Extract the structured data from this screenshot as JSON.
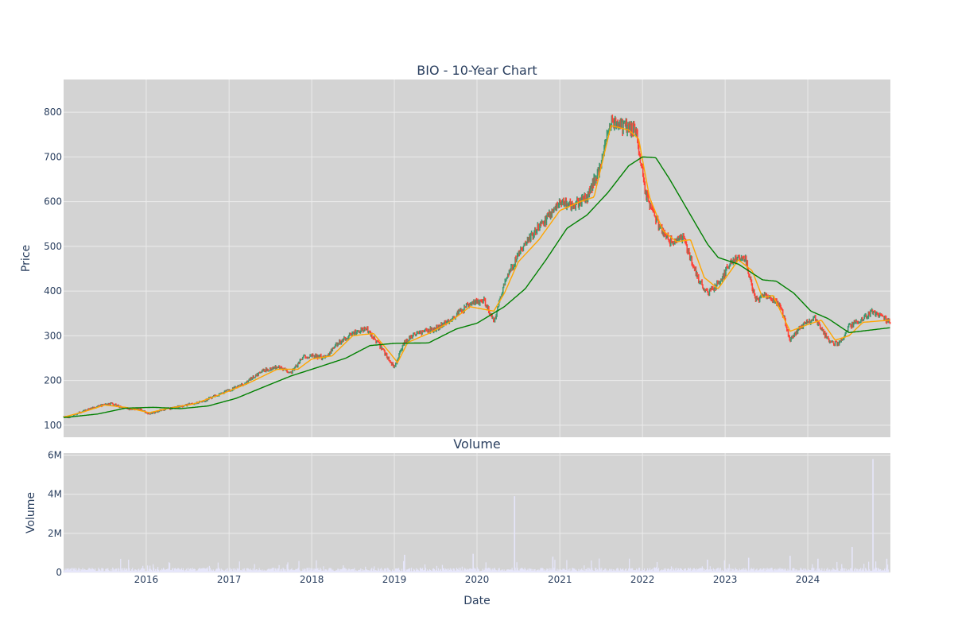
{
  "chart_data": [
    {
      "type": "candlestick",
      "title": "BIO - 10-Year Chart",
      "ylabel": "Price",
      "xlabel": "",
      "x_range": [
        "2015-01-01",
        "2024-12-31"
      ],
      "ylim": [
        73,
        873
      ],
      "y_ticks": [
        100,
        200,
        300,
        400,
        500,
        600,
        700,
        800
      ],
      "grid": true,
      "background": "#d3d3d3",
      "colors": {
        "increasing": "#3d9970",
        "decreasing": "#ff4136",
        "ma_short": "#ffa500",
        "ma_long": "#008000"
      },
      "series": [
        {
          "type": "candlestick",
          "approx_close_path": [
            [
              "2015-01-01",
              119
            ],
            [
              "2015-02-01",
              117
            ],
            [
              "2015-04-01",
              133
            ],
            [
              "2015-06-01",
              142
            ],
            [
              "2015-08-01",
              148
            ],
            [
              "2015-10-01",
              137
            ],
            [
              "2015-12-01",
              136
            ],
            [
              "2016-01-15",
              125
            ],
            [
              "2016-03-01",
              133
            ],
            [
              "2016-06-01",
              142
            ],
            [
              "2016-09-01",
              152
            ],
            [
              "2016-12-01",
              172
            ],
            [
              "2017-03-01",
              190
            ],
            [
              "2017-06-01",
              222
            ],
            [
              "2017-08-01",
              230
            ],
            [
              "2017-10-01",
              218
            ],
            [
              "2017-12-01",
              255
            ],
            [
              "2018-03-01",
              252
            ],
            [
              "2018-05-01",
              285
            ],
            [
              "2018-07-01",
              305
            ],
            [
              "2018-09-01",
              315
            ],
            [
              "2018-11-01",
              275
            ],
            [
              "2019-01-01",
              230
            ],
            [
              "2019-02-15",
              285
            ],
            [
              "2019-04-01",
              305
            ],
            [
              "2019-07-01",
              315
            ],
            [
              "2019-09-01",
              335
            ],
            [
              "2019-12-01",
              370
            ],
            [
              "2020-02-01",
              380
            ],
            [
              "2020-03-15",
              330
            ],
            [
              "2020-05-01",
              420
            ],
            [
              "2020-07-01",
              480
            ],
            [
              "2020-09-01",
              525
            ],
            [
              "2020-11-01",
              560
            ],
            [
              "2021-01-01",
              600
            ],
            [
              "2021-03-01",
              590
            ],
            [
              "2021-05-01",
              610
            ],
            [
              "2021-07-01",
              680
            ],
            [
              "2021-08-15",
              780
            ],
            [
              "2021-10-01",
              770
            ],
            [
              "2021-12-01",
              760
            ],
            [
              "2022-01-15",
              620
            ],
            [
              "2022-03-01",
              560
            ],
            [
              "2022-05-01",
              510
            ],
            [
              "2022-07-01",
              520
            ],
            [
              "2022-09-01",
              430
            ],
            [
              "2022-10-15",
              395
            ],
            [
              "2022-12-01",
              415
            ],
            [
              "2023-02-01",
              470
            ],
            [
              "2023-04-01",
              470
            ],
            [
              "2023-05-15",
              380
            ],
            [
              "2023-07-01",
              390
            ],
            [
              "2023-09-01",
              370
            ],
            [
              "2023-10-15",
              290
            ],
            [
              "2023-12-01",
              320
            ],
            [
              "2024-02-01",
              340
            ],
            [
              "2024-04-01",
              290
            ],
            [
              "2024-05-15",
              280
            ],
            [
              "2024-07-01",
              320
            ],
            [
              "2024-09-01",
              340
            ],
            [
              "2024-10-15",
              355
            ],
            [
              "2024-12-31",
              330
            ]
          ]
        },
        {
          "type": "line",
          "approx_path": [
            [
              "2015-01-01",
              118
            ],
            [
              "2015-04-01",
              130
            ],
            [
              "2015-07-01",
              145
            ],
            [
              "2015-10-01",
              140
            ],
            [
              "2016-01-15",
              128
            ],
            [
              "2016-04-01",
              137
            ],
            [
              "2016-08-01",
              148
            ],
            [
              "2016-12-01",
              170
            ],
            [
              "2017-04-01",
              195
            ],
            [
              "2017-08-01",
              225
            ],
            [
              "2017-11-01",
              225
            ],
            [
              "2018-01-01",
              248
            ],
            [
              "2018-04-01",
              255
            ],
            [
              "2018-07-01",
              300
            ],
            [
              "2018-10-01",
              305
            ],
            [
              "2018-12-15",
              260
            ],
            [
              "2019-01-15",
              240
            ],
            [
              "2019-03-01",
              285
            ],
            [
              "2019-06-01",
              305
            ],
            [
              "2019-09-01",
              330
            ],
            [
              "2019-12-01",
              365
            ],
            [
              "2020-03-15",
              355
            ],
            [
              "2020-05-01",
              395
            ],
            [
              "2020-07-01",
              465
            ],
            [
              "2020-10-01",
              515
            ],
            [
              "2021-01-01",
              580
            ],
            [
              "2021-04-01",
              600
            ],
            [
              "2021-06-01",
              610
            ],
            [
              "2021-08-15",
              770
            ],
            [
              "2021-11-01",
              760
            ],
            [
              "2021-12-15",
              740
            ],
            [
              "2022-02-01",
              610
            ],
            [
              "2022-04-01",
              535
            ],
            [
              "2022-06-01",
              510
            ],
            [
              "2022-08-01",
              515
            ],
            [
              "2022-10-01",
              430
            ],
            [
              "2022-12-01",
              405
            ],
            [
              "2023-03-01",
              470
            ],
            [
              "2023-05-01",
              445
            ],
            [
              "2023-06-15",
              385
            ],
            [
              "2023-08-01",
              390
            ],
            [
              "2023-10-15",
              310
            ],
            [
              "2024-01-01",
              325
            ],
            [
              "2024-03-01",
              335
            ],
            [
              "2024-05-01",
              290
            ],
            [
              "2024-07-01",
              300
            ],
            [
              "2024-09-01",
              330
            ],
            [
              "2024-12-31",
              335
            ]
          ]
        },
        {
          "type": "line",
          "approx_path": [
            [
              "2015-01-01",
              117
            ],
            [
              "2015-06-01",
              125
            ],
            [
              "2015-10-01",
              138
            ],
            [
              "2016-02-01",
              140
            ],
            [
              "2016-06-01",
              137
            ],
            [
              "2016-10-01",
              143
            ],
            [
              "2017-02-01",
              160
            ],
            [
              "2017-06-01",
              185
            ],
            [
              "2017-10-01",
              210
            ],
            [
              "2018-02-01",
              230
            ],
            [
              "2018-06-01",
              250
            ],
            [
              "2018-09-15",
              278
            ],
            [
              "2019-01-01",
              283
            ],
            [
              "2019-06-01",
              284
            ],
            [
              "2019-10-01",
              315
            ],
            [
              "2020-01-01",
              328
            ],
            [
              "2020-05-01",
              365
            ],
            [
              "2020-08-01",
              405
            ],
            [
              "2020-11-01",
              470
            ],
            [
              "2021-02-01",
              540
            ],
            [
              "2021-05-01",
              570
            ],
            [
              "2021-08-01",
              620
            ],
            [
              "2021-11-01",
              680
            ],
            [
              "2022-01-01",
              700
            ],
            [
              "2022-03-01",
              698
            ],
            [
              "2022-05-01",
              650
            ],
            [
              "2022-08-01",
              570
            ],
            [
              "2022-10-15",
              505
            ],
            [
              "2022-12-01",
              475
            ],
            [
              "2023-03-01",
              460
            ],
            [
              "2023-06-15",
              425
            ],
            [
              "2023-08-15",
              422
            ],
            [
              "2023-11-01",
              395
            ],
            [
              "2024-01-15",
              355
            ],
            [
              "2024-04-01",
              338
            ],
            [
              "2024-07-01",
              307
            ],
            [
              "2024-12-31",
              318
            ]
          ]
        }
      ]
    },
    {
      "type": "bar",
      "title": "Volume",
      "ylabel": "Volume",
      "xlabel": "Date",
      "x_range": [
        "2015-01-01",
        "2024-12-31"
      ],
      "ylim": [
        0,
        6100000
      ],
      "y_ticks": [
        0,
        2000000,
        4000000,
        6000000
      ],
      "y_tick_labels": [
        "0",
        "2M",
        "4M",
        "6M"
      ],
      "x_ticks": [
        "2016-01-01",
        "2017-01-01",
        "2018-01-01",
        "2019-01-01",
        "2020-01-01",
        "2021-01-01",
        "2022-01-01",
        "2023-01-01",
        "2024-01-01"
      ],
      "x_tick_labels": [
        "2016",
        "2017",
        "2018",
        "2019",
        "2020",
        "2021",
        "2022",
        "2023",
        "2024"
      ],
      "grid": true,
      "background": "#d3d3d3",
      "bar_color": "#e6e6fa",
      "typical_volume": 150000,
      "notable_spikes": [
        [
          "2019-02-15",
          900000
        ],
        [
          "2019-12-15",
          950000
        ],
        [
          "2020-06-15",
          3900000
        ],
        [
          "2020-12-01",
          800000
        ],
        [
          "2022-10-15",
          650000
        ],
        [
          "2023-04-15",
          750000
        ],
        [
          "2023-10-15",
          850000
        ],
        [
          "2024-02-15",
          700000
        ],
        [
          "2024-07-15",
          1300000
        ],
        [
          "2024-10-15",
          5800000
        ],
        [
          "2024-12-15",
          700000
        ]
      ]
    }
  ]
}
